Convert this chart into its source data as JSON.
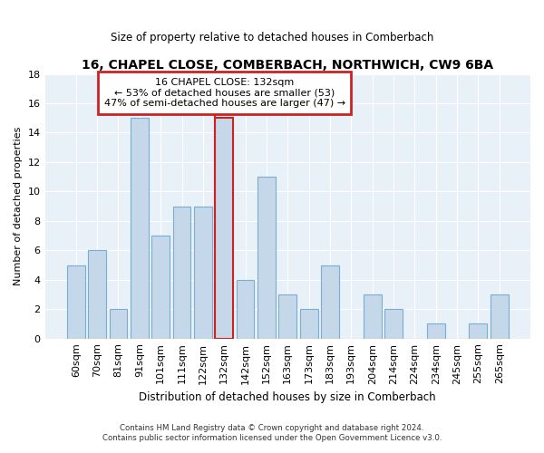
{
  "title": "16, CHAPEL CLOSE, COMBERBACH, NORTHWICH, CW9 6BA",
  "subtitle": "Size of property relative to detached houses in Comberbach",
  "xlabel": "Distribution of detached houses by size in Comberbach",
  "ylabel": "Number of detached properties",
  "categories": [
    "60sqm",
    "70sqm",
    "81sqm",
    "91sqm",
    "101sqm",
    "111sqm",
    "122sqm",
    "132sqm",
    "142sqm",
    "152sqm",
    "163sqm",
    "173sqm",
    "183sqm",
    "193sqm",
    "204sqm",
    "214sqm",
    "224sqm",
    "234sqm",
    "245sqm",
    "255sqm",
    "265sqm"
  ],
  "values": [
    5,
    6,
    2,
    15,
    7,
    9,
    9,
    15,
    4,
    11,
    3,
    2,
    5,
    0,
    3,
    2,
    0,
    1,
    0,
    1,
    3
  ],
  "highlight_index": 7,
  "bar_color": "#c5d8ea",
  "bar_edge_color": "#7aaed0",
  "highlight_edge_color": "#cc2222",
  "ylim": [
    0,
    18
  ],
  "yticks": [
    0,
    2,
    4,
    6,
    8,
    10,
    12,
    14,
    16,
    18
  ],
  "box_text_line1": "16 CHAPEL CLOSE: 132sqm",
  "box_text_line2": "← 53% of detached houses are smaller (53)",
  "box_text_line3": "47% of semi-detached houses are larger (47) →",
  "footnote1": "Contains HM Land Registry data © Crown copyright and database right 2024.",
  "footnote2": "Contains public sector information licensed under the Open Government Licence v3.0.",
  "bg_color": "#e8f0f8",
  "figsize": [
    6.0,
    5.0
  ],
  "dpi": 100
}
